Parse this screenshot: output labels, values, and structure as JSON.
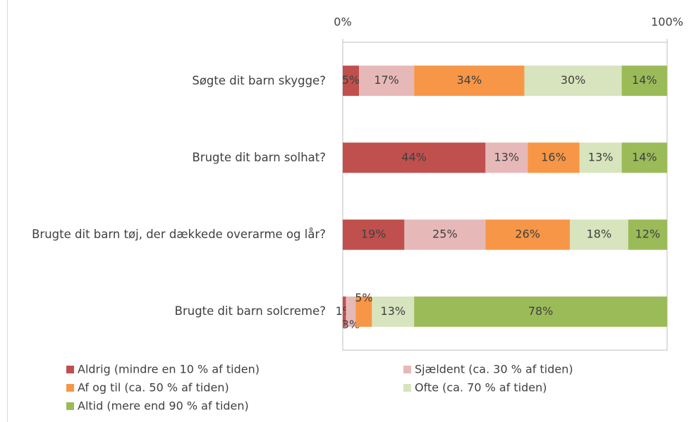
{
  "chart_data": {
    "type": "stacked_bar_horizontal",
    "categories": [
      "Søgte dit barn skygge?",
      "Brugte dit barn solhat?",
      "Brugte dit barn tøj, der dækkede overarme og lår?",
      "Brugte dit barn solcreme?"
    ],
    "series": [
      {
        "name": "Aldrig (mindre en 10 % af tiden)",
        "color": "#c0504d",
        "values": [
          5,
          44,
          19,
          1
        ],
        "value_labels": [
          "5%",
          "44%",
          "19%",
          "1%"
        ]
      },
      {
        "name": "Sjældent (ca. 30 % af tiden)",
        "color": "#e6b9b8",
        "values": [
          17,
          13,
          25,
          3
        ],
        "value_labels": [
          "17%",
          "13%",
          "25%",
          "3%"
        ]
      },
      {
        "name": "Af og til (ca. 50 % af tiden)",
        "color": "#f79646",
        "values": [
          34,
          16,
          26,
          5
        ],
        "value_labels": [
          "34%",
          "16%",
          "26%",
          "5%"
        ]
      },
      {
        "name": "Ofte (ca. 70 % af tiden)",
        "color": "#d7e4bd",
        "values": [
          30,
          13,
          18,
          13
        ],
        "value_labels": [
          "30%",
          "13%",
          "18%",
          "13%"
        ]
      },
      {
        "name": "Altid (mere end 90 % af tiden)",
        "color": "#9bbb59",
        "values": [
          14,
          14,
          12,
          78
        ],
        "value_labels": [
          "14%",
          "14%",
          "12%",
          "78%"
        ]
      }
    ],
    "xlim": [
      0,
      100
    ],
    "xticks": [
      {
        "value": 0,
        "label": "0%"
      },
      {
        "value": 100,
        "label": "100%"
      }
    ]
  }
}
